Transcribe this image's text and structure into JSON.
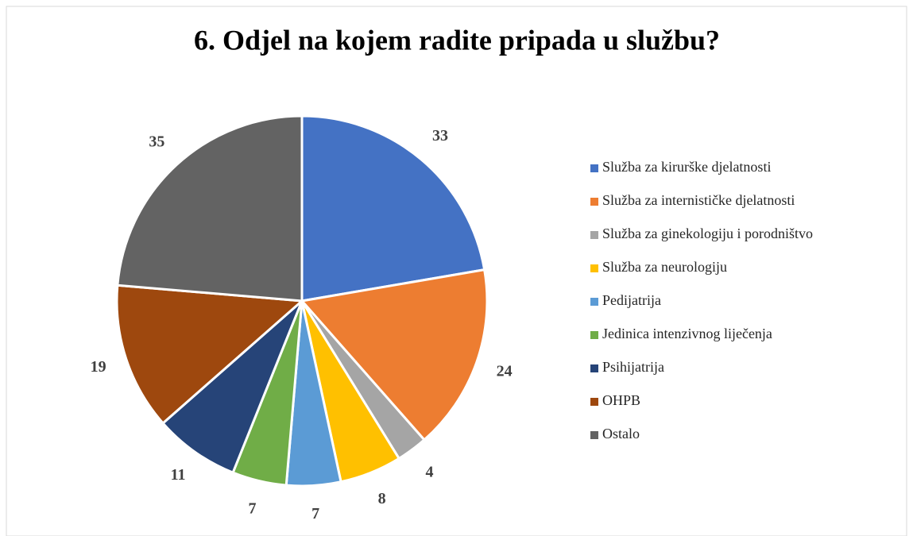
{
  "chart_data": {
    "type": "pie",
    "title": "6. Odjel na kojem radite pripada u službu?",
    "categories": [
      "Služba za kirurške djelatnosti",
      "Služba za internističke djelatnosti",
      "Služba za ginekologiju i porodništvo",
      "Služba za neurologiju",
      "Pedijatrija",
      "Jedinica intenzivnog liječenja",
      "Psihijatrija",
      "OHPB",
      "Ostalo"
    ],
    "values": [
      33,
      24,
      4,
      8,
      7,
      7,
      11,
      19,
      35
    ],
    "colors": [
      "#4472c4",
      "#ed7d31",
      "#a5a5a5",
      "#ffc000",
      "#5b9bd5",
      "#70ad47",
      "#264478",
      "#9e480e",
      "#636363"
    ],
    "legend": "right"
  }
}
